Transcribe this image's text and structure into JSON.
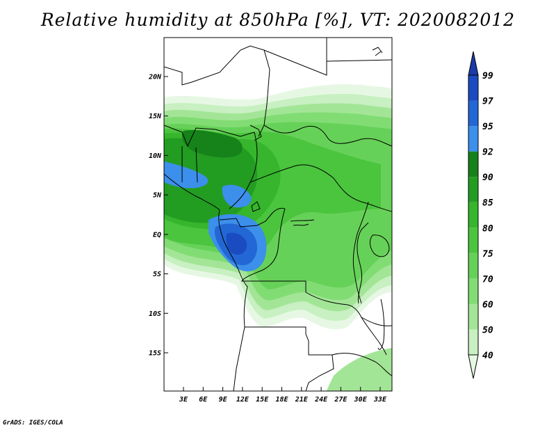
{
  "title": "Relative humidity at 850hPa [%], VT: 2020082012",
  "credit": "GrADS: IGES/COLA",
  "map": {
    "lat_ticks": [
      {
        "lat": 20,
        "label": "20N"
      },
      {
        "lat": 15,
        "label": "15N"
      },
      {
        "lat": 10,
        "label": "10N"
      },
      {
        "lat": 5,
        "label": "5N"
      },
      {
        "lat": 0,
        "label": "EQ"
      },
      {
        "lat": -5,
        "label": "5S"
      },
      {
        "lat": -10,
        "label": "10S"
      },
      {
        "lat": -15,
        "label": "15S"
      }
    ],
    "lon_ticks": [
      {
        "lon": 3,
        "label": "3E"
      },
      {
        "lon": 6,
        "label": "6E"
      },
      {
        "lon": 9,
        "label": "9E"
      },
      {
        "lon": 12,
        "label": "12E"
      },
      {
        "lon": 15,
        "label": "15E"
      },
      {
        "lon": 18,
        "label": "18E"
      },
      {
        "lon": 21,
        "label": "21E"
      },
      {
        "lon": 24,
        "label": "24E"
      },
      {
        "lon": 27,
        "label": "27E"
      },
      {
        "lon": 30,
        "label": "30E"
      },
      {
        "lon": 33,
        "label": "33E"
      }
    ]
  },
  "colorbar": {
    "levels": [
      "40",
      "50",
      "60",
      "70",
      "75",
      "80",
      "85",
      "90",
      "92",
      "95",
      "97",
      "99"
    ],
    "colors": [
      "#e6f8e3",
      "#c8f0c2",
      "#a3e596",
      "#82dc74",
      "#66d158",
      "#4bc43e",
      "#36b52d",
      "#239c22",
      "#16821a",
      "#3c8fea",
      "#2367d4",
      "#1b4bc0",
      "#1a3ba8"
    ]
  },
  "colors": {
    "ocean": "#ffffff",
    "border": "#000000"
  }
}
